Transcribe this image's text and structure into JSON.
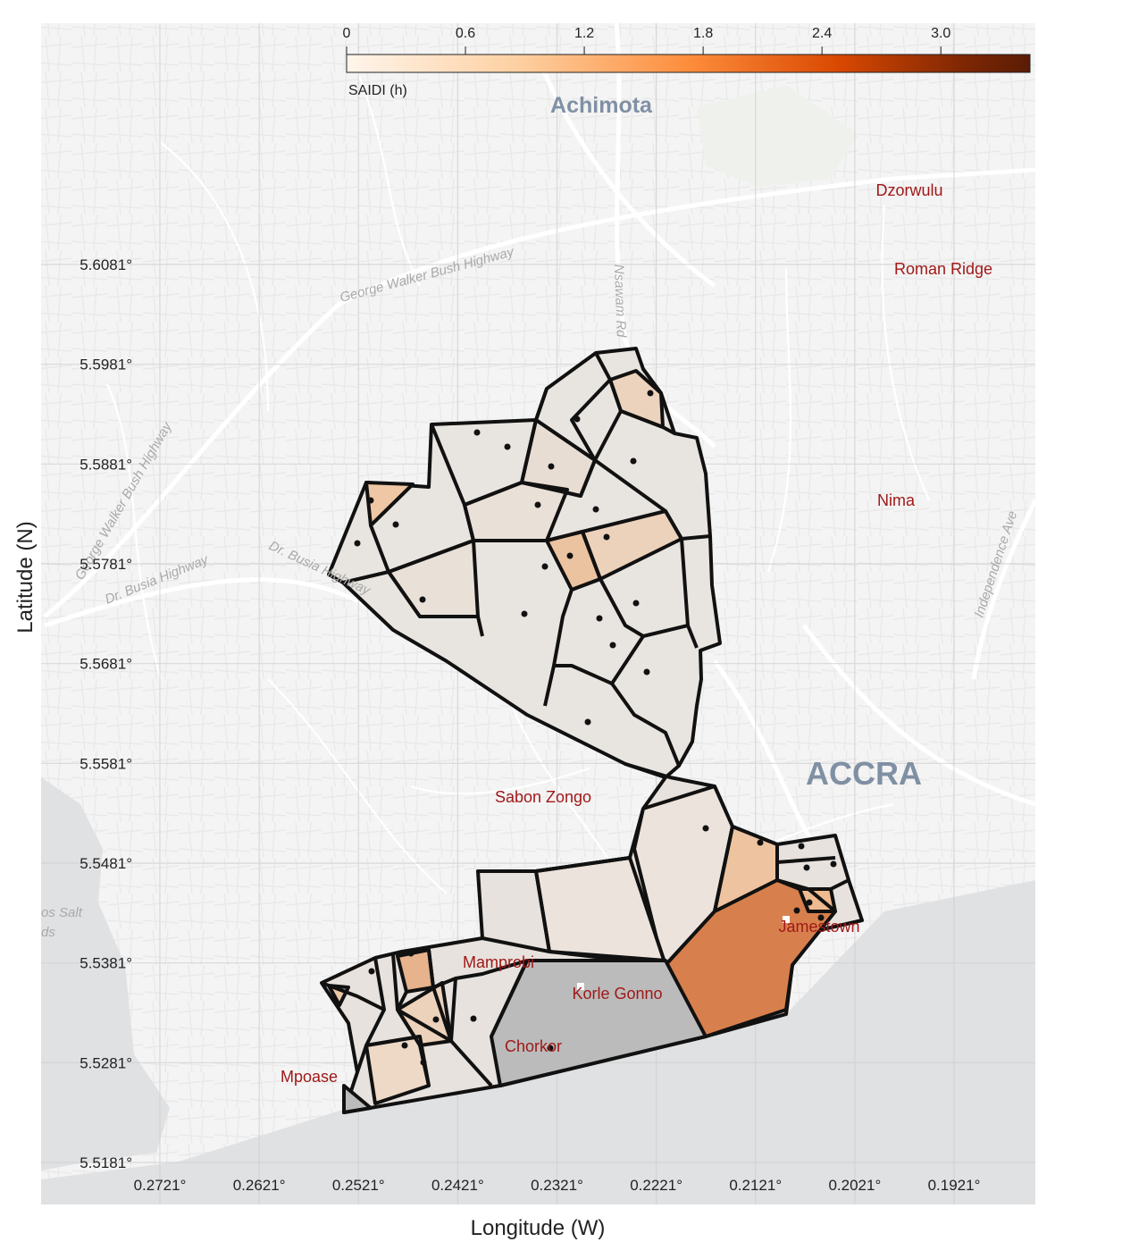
{
  "chart_data": {
    "type": "heatmap",
    "xlabel": "Longitude (W)",
    "ylabel": "Latitude (N)",
    "x_ticks": [
      "0.2721°",
      "0.2621°",
      "0.2521°",
      "0.2421°",
      "0.2321°",
      "0.2221°",
      "0.2121°",
      "0.2021°",
      "0.1921°"
    ],
    "y_ticks": [
      "5.6081°",
      "5.5981°",
      "5.5881°",
      "5.5781°",
      "5.5681°",
      "5.5581°",
      "5.5481°",
      "5.5381°",
      "5.5281°",
      "5.5181°"
    ],
    "xlim": [
      0.2721,
      0.1921
    ],
    "ylim": [
      5.5181,
      5.6081
    ],
    "grid": true,
    "colorbar": {
      "label": "SAIDI (h)",
      "ticks": [
        "0",
        "0.6",
        "1.2",
        "1.8",
        "2.4",
        "3.0"
      ],
      "range": [
        0,
        3.45
      ],
      "colors": [
        "#fff5eb",
        "#fdd0a2",
        "#fd8d3c",
        "#d94801",
        "#7f2704",
        "#5a1c05"
      ]
    }
  },
  "map": {
    "places": [
      {
        "name": "Achimota",
        "style": "big"
      },
      {
        "name": "ACCRA",
        "style": "big"
      },
      {
        "name": "Dzorwulu",
        "style": "place"
      },
      {
        "name": "Roman Ridge",
        "style": "place"
      },
      {
        "name": "Nima",
        "style": "place"
      },
      {
        "name": "Sabon Zongo",
        "style": "place"
      },
      {
        "name": "Mamprobi",
        "style": "place"
      },
      {
        "name": "Korle Gonno",
        "style": "place"
      },
      {
        "name": "Chorkor",
        "style": "place"
      },
      {
        "name": "Mpoase",
        "style": "place"
      },
      {
        "name": "Jamestown",
        "style": "place"
      }
    ],
    "roads": [
      "George Walker Bush Highway",
      "George Walker Bush Highway",
      "Dr. Busia Highway",
      "Dr. Busia Highway",
      "Nsawam Rd",
      "Independence Ave"
    ],
    "fragments": [
      "os Salt",
      "ds"
    ]
  }
}
